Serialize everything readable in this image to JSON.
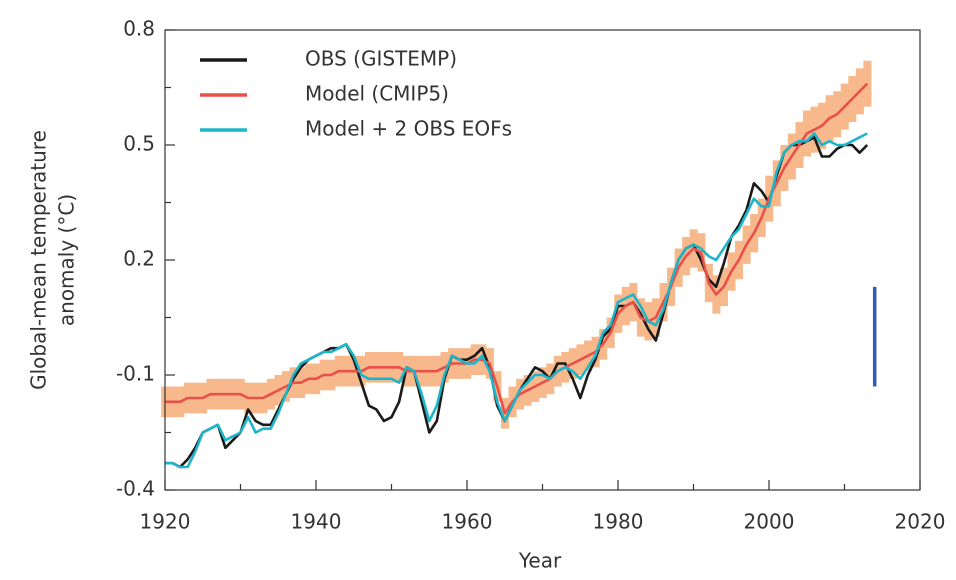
{
  "chart_data": {
    "type": "line",
    "xlabel": "Year",
    "ylabel": [
      "Global-mean temperature",
      "anomaly (°C)"
    ],
    "xlim": [
      1920,
      2020
    ],
    "xticks": [
      1920,
      1940,
      1960,
      1980,
      2000,
      2020
    ],
    "xminor": [
      1930,
      1950,
      1970,
      1990,
      2010
    ],
    "ylim": [
      -0.4,
      0.8
    ],
    "yticks": [
      -0.4,
      -0.1,
      0.2,
      0.5,
      0.8
    ],
    "yminor": [
      -0.25,
      0.05,
      0.35,
      0.65
    ],
    "legend": "upper left",
    "x": [
      1920,
      1921,
      1922,
      1923,
      1924,
      1925,
      1926,
      1927,
      1928,
      1929,
      1930,
      1931,
      1932,
      1933,
      1934,
      1935,
      1936,
      1937,
      1938,
      1939,
      1940,
      1941,
      1942,
      1943,
      1944,
      1945,
      1946,
      1947,
      1948,
      1949,
      1950,
      1951,
      1952,
      1953,
      1954,
      1955,
      1956,
      1957,
      1958,
      1959,
      1960,
      1961,
      1962,
      1963,
      1964,
      1965,
      1966,
      1967,
      1968,
      1969,
      1970,
      1971,
      1972,
      1973,
      1974,
      1975,
      1976,
      1977,
      1978,
      1979,
      1980,
      1981,
      1982,
      1983,
      1984,
      1985,
      1986,
      1987,
      1988,
      1989,
      1990,
      1991,
      1992,
      1993,
      1994,
      1995,
      1996,
      1997,
      1998,
      1999,
      2000,
      2001,
      2002,
      2003,
      2004,
      2005,
      2006,
      2007,
      2008,
      2009,
      2010,
      2011,
      2012,
      2013
    ],
    "series": [
      {
        "name": "OBS (GISTEMP)",
        "color": "#1a1a1a",
        "values": [
          -0.33,
          -0.33,
          -0.34,
          -0.32,
          -0.29,
          -0.25,
          -0.24,
          -0.23,
          -0.29,
          -0.27,
          -0.25,
          -0.19,
          -0.22,
          -0.23,
          -0.23,
          -0.19,
          -0.15,
          -0.11,
          -0.08,
          -0.06,
          -0.05,
          -0.04,
          -0.03,
          -0.03,
          -0.02,
          -0.06,
          -0.12,
          -0.18,
          -0.19,
          -0.22,
          -0.21,
          -0.17,
          -0.08,
          -0.09,
          -0.17,
          -0.25,
          -0.22,
          -0.11,
          -0.05,
          -0.06,
          -0.06,
          -0.05,
          -0.03,
          -0.08,
          -0.18,
          -0.22,
          -0.18,
          -0.14,
          -0.11,
          -0.08,
          -0.09,
          -0.11,
          -0.07,
          -0.07,
          -0.11,
          -0.16,
          -0.1,
          -0.06,
          0.0,
          0.02,
          0.08,
          0.08,
          0.09,
          0.06,
          0.02,
          -0.01,
          0.06,
          0.14,
          0.2,
          0.23,
          0.24,
          0.2,
          0.15,
          0.13,
          0.19,
          0.26,
          0.29,
          0.33,
          0.4,
          0.38,
          0.35,
          0.42,
          0.48,
          0.5,
          0.5,
          0.51,
          0.52,
          0.47,
          0.47,
          0.49,
          0.5,
          0.5,
          0.48,
          0.5
        ]
      },
      {
        "name": "Model (CMIP5)",
        "color": "#e8504a",
        "band_color": "#f7b98c",
        "values": [
          -0.17,
          -0.17,
          -0.17,
          -0.16,
          -0.16,
          -0.16,
          -0.15,
          -0.15,
          -0.15,
          -0.15,
          -0.15,
          -0.16,
          -0.16,
          -0.16,
          -0.15,
          -0.14,
          -0.13,
          -0.12,
          -0.12,
          -0.11,
          -0.11,
          -0.1,
          -0.1,
          -0.09,
          -0.09,
          -0.09,
          -0.09,
          -0.08,
          -0.08,
          -0.08,
          -0.08,
          -0.08,
          -0.09,
          -0.09,
          -0.09,
          -0.09,
          -0.09,
          -0.08,
          -0.07,
          -0.07,
          -0.07,
          -0.06,
          -0.06,
          -0.07,
          -0.13,
          -0.2,
          -0.17,
          -0.15,
          -0.14,
          -0.13,
          -0.12,
          -0.11,
          -0.09,
          -0.08,
          -0.07,
          -0.06,
          -0.05,
          -0.04,
          -0.02,
          0.01,
          0.06,
          0.08,
          0.09,
          0.05,
          0.04,
          0.05,
          0.09,
          0.13,
          0.18,
          0.21,
          0.23,
          0.22,
          0.14,
          0.11,
          0.13,
          0.17,
          0.2,
          0.24,
          0.27,
          0.31,
          0.36,
          0.4,
          0.44,
          0.47,
          0.5,
          0.53,
          0.54,
          0.55,
          0.57,
          0.58,
          0.6,
          0.62,
          0.64,
          0.66
        ],
        "error": [
          0.04,
          0.04,
          0.04,
          0.04,
          0.04,
          0.04,
          0.04,
          0.04,
          0.04,
          0.04,
          0.04,
          0.04,
          0.04,
          0.04,
          0.04,
          0.04,
          0.04,
          0.04,
          0.04,
          0.04,
          0.04,
          0.04,
          0.04,
          0.04,
          0.04,
          0.04,
          0.04,
          0.04,
          0.04,
          0.04,
          0.04,
          0.04,
          0.04,
          0.04,
          0.04,
          0.04,
          0.04,
          0.04,
          0.04,
          0.04,
          0.04,
          0.04,
          0.04,
          0.04,
          0.04,
          0.04,
          0.04,
          0.04,
          0.04,
          0.04,
          0.04,
          0.04,
          0.04,
          0.04,
          0.04,
          0.04,
          0.04,
          0.04,
          0.04,
          0.04,
          0.05,
          0.05,
          0.05,
          0.05,
          0.05,
          0.05,
          0.05,
          0.05,
          0.05,
          0.05,
          0.05,
          0.05,
          0.05,
          0.05,
          0.05,
          0.05,
          0.05,
          0.05,
          0.05,
          0.05,
          0.06,
          0.06,
          0.06,
          0.06,
          0.06,
          0.06,
          0.06,
          0.06,
          0.06,
          0.06,
          0.06,
          0.06,
          0.06,
          0.06
        ]
      },
      {
        "name": "Model + 2 OBS EOFs",
        "color": "#1fb5c9",
        "values": [
          -0.33,
          -0.33,
          -0.34,
          -0.34,
          -0.3,
          -0.25,
          -0.24,
          -0.23,
          -0.27,
          -0.26,
          -0.25,
          -0.21,
          -0.25,
          -0.24,
          -0.24,
          -0.2,
          -0.15,
          -0.1,
          -0.07,
          -0.06,
          -0.05,
          -0.04,
          -0.04,
          -0.03,
          -0.02,
          -0.05,
          -0.1,
          -0.11,
          -0.11,
          -0.11,
          -0.11,
          -0.12,
          -0.08,
          -0.09,
          -0.15,
          -0.22,
          -0.18,
          -0.1,
          -0.05,
          -0.06,
          -0.07,
          -0.07,
          -0.05,
          -0.09,
          -0.17,
          -0.22,
          -0.18,
          -0.14,
          -0.12,
          -0.1,
          -0.1,
          -0.11,
          -0.09,
          -0.08,
          -0.09,
          -0.11,
          -0.08,
          -0.05,
          0.01,
          0.03,
          0.09,
          0.1,
          0.11,
          0.08,
          0.04,
          0.03,
          0.07,
          0.14,
          0.2,
          0.23,
          0.24,
          0.23,
          0.21,
          0.2,
          0.23,
          0.26,
          0.28,
          0.32,
          0.36,
          0.34,
          0.34,
          0.43,
          0.48,
          0.5,
          0.51,
          0.51,
          0.53,
          0.5,
          0.51,
          0.5,
          0.5,
          0.51,
          0.52,
          0.53
        ]
      }
    ],
    "range_bar": {
      "x": 2014,
      "range": [
        -0.13,
        0.13
      ],
      "color": "#2b5fb4"
    }
  }
}
